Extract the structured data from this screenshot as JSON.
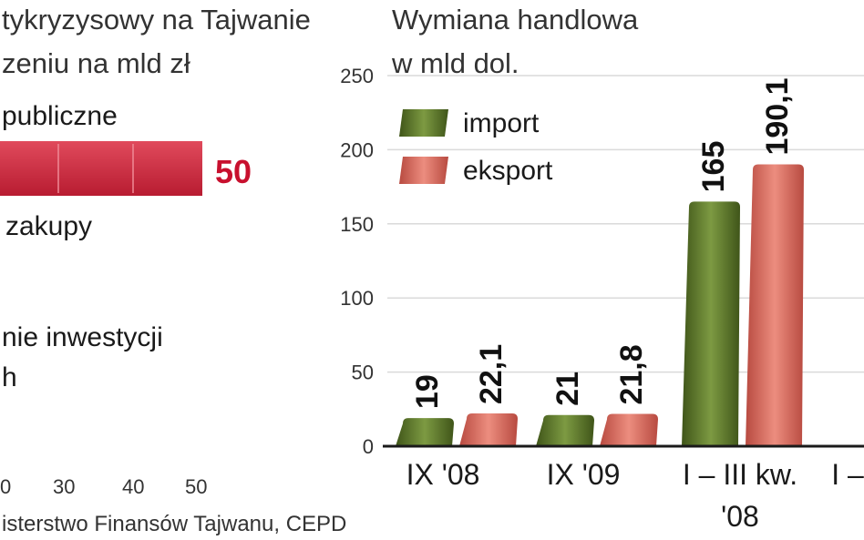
{
  "left_panel": {
    "title_lines": [
      "tykryzysowy na Tajwanie",
      "zeniu na mld zł"
    ],
    "items": [
      "publiczne",
      "zakupy",
      "nie inwestycji",
      "h"
    ],
    "bar_value_label": "50",
    "axis_ticks": [
      "0",
      "30",
      "40",
      "50"
    ],
    "source": "isterstwo Finansów Tajwanu, CEPD",
    "colors": {
      "bar": "#d3273e",
      "value": "#c8102e"
    }
  },
  "chart_data": {
    "type": "bar",
    "title": "Wymiana handlowa",
    "subtitle": "w mld dol.",
    "categories": [
      "IX '08",
      "IX '09",
      "I – III kw. '08",
      "I –"
    ],
    "category_lines": [
      [
        "IX '08"
      ],
      [
        "IX '09"
      ],
      [
        "I – III kw.",
        "'08"
      ],
      [
        "I –"
      ]
    ],
    "series": [
      {
        "name": "import",
        "values": [
          19,
          21,
          165,
          null
        ],
        "labels": [
          "19",
          "21",
          "165",
          ""
        ],
        "color": "#5f7a2b"
      },
      {
        "name": "eksport",
        "values": [
          22.1,
          21.8,
          190.1,
          null
        ],
        "labels": [
          "22,1",
          "21,8",
          "190,1",
          ""
        ],
        "color": "#d9665a"
      }
    ],
    "yticks": [
      "0",
      "50",
      "100",
      "150",
      "200",
      "250"
    ],
    "ylim": [
      0,
      250
    ],
    "legend": "top-left"
  }
}
